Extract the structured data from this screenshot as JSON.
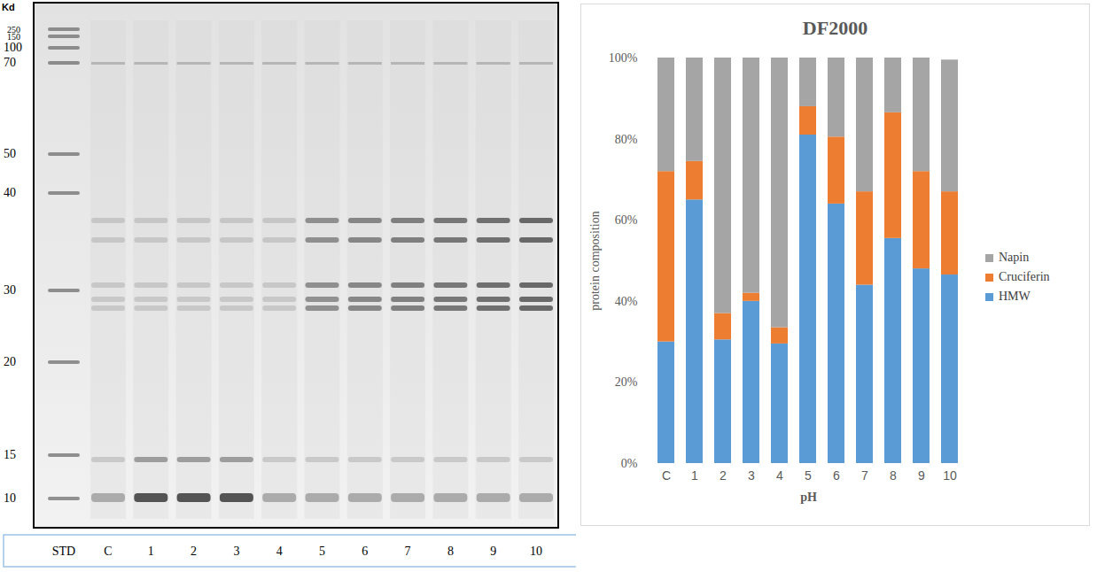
{
  "gel": {
    "unit_label": "Kd",
    "markers": [
      250,
      150,
      100,
      70,
      50,
      40,
      30,
      20,
      15,
      10
    ],
    "lanes": [
      "STD",
      "C",
      "1",
      "2",
      "3",
      "4",
      "5",
      "6",
      "7",
      "8",
      "9",
      "10"
    ]
  },
  "chart_data": {
    "type": "bar",
    "title": "DF2000",
    "stacked": true,
    "x_label": "pH",
    "y_label": "protein composition",
    "categories": [
      "C",
      "1",
      "2",
      "3",
      "4",
      "5",
      "6",
      "7",
      "8",
      "9",
      "10"
    ],
    "series": [
      {
        "name": "HMW",
        "color": "#5b9bd5",
        "values": [
          30,
          65,
          30.5,
          40,
          29.5,
          81,
          64,
          44,
          55.5,
          48,
          46.5
        ]
      },
      {
        "name": "Cruciferin",
        "color": "#ed7d31",
        "values": [
          42,
          9.5,
          6.5,
          2,
          4,
          7,
          16.5,
          23,
          31,
          24,
          20.5
        ]
      },
      {
        "name": "Napin",
        "color": "#a5a5a5",
        "values": [
          28,
          25.5,
          63,
          58,
          66.5,
          12,
          19.5,
          33,
          13.5,
          28,
          32.5
        ]
      }
    ],
    "ylim": [
      0,
      100
    ],
    "yticks": [
      {
        "value": 0,
        "label": "0%"
      },
      {
        "value": 20,
        "label": "20%"
      },
      {
        "value": 40,
        "label": "40%"
      },
      {
        "value": 60,
        "label": "60%"
      },
      {
        "value": 80,
        "label": "80%"
      },
      {
        "value": 100,
        "label": "100%"
      }
    ],
    "grid": false,
    "legend": "right"
  }
}
